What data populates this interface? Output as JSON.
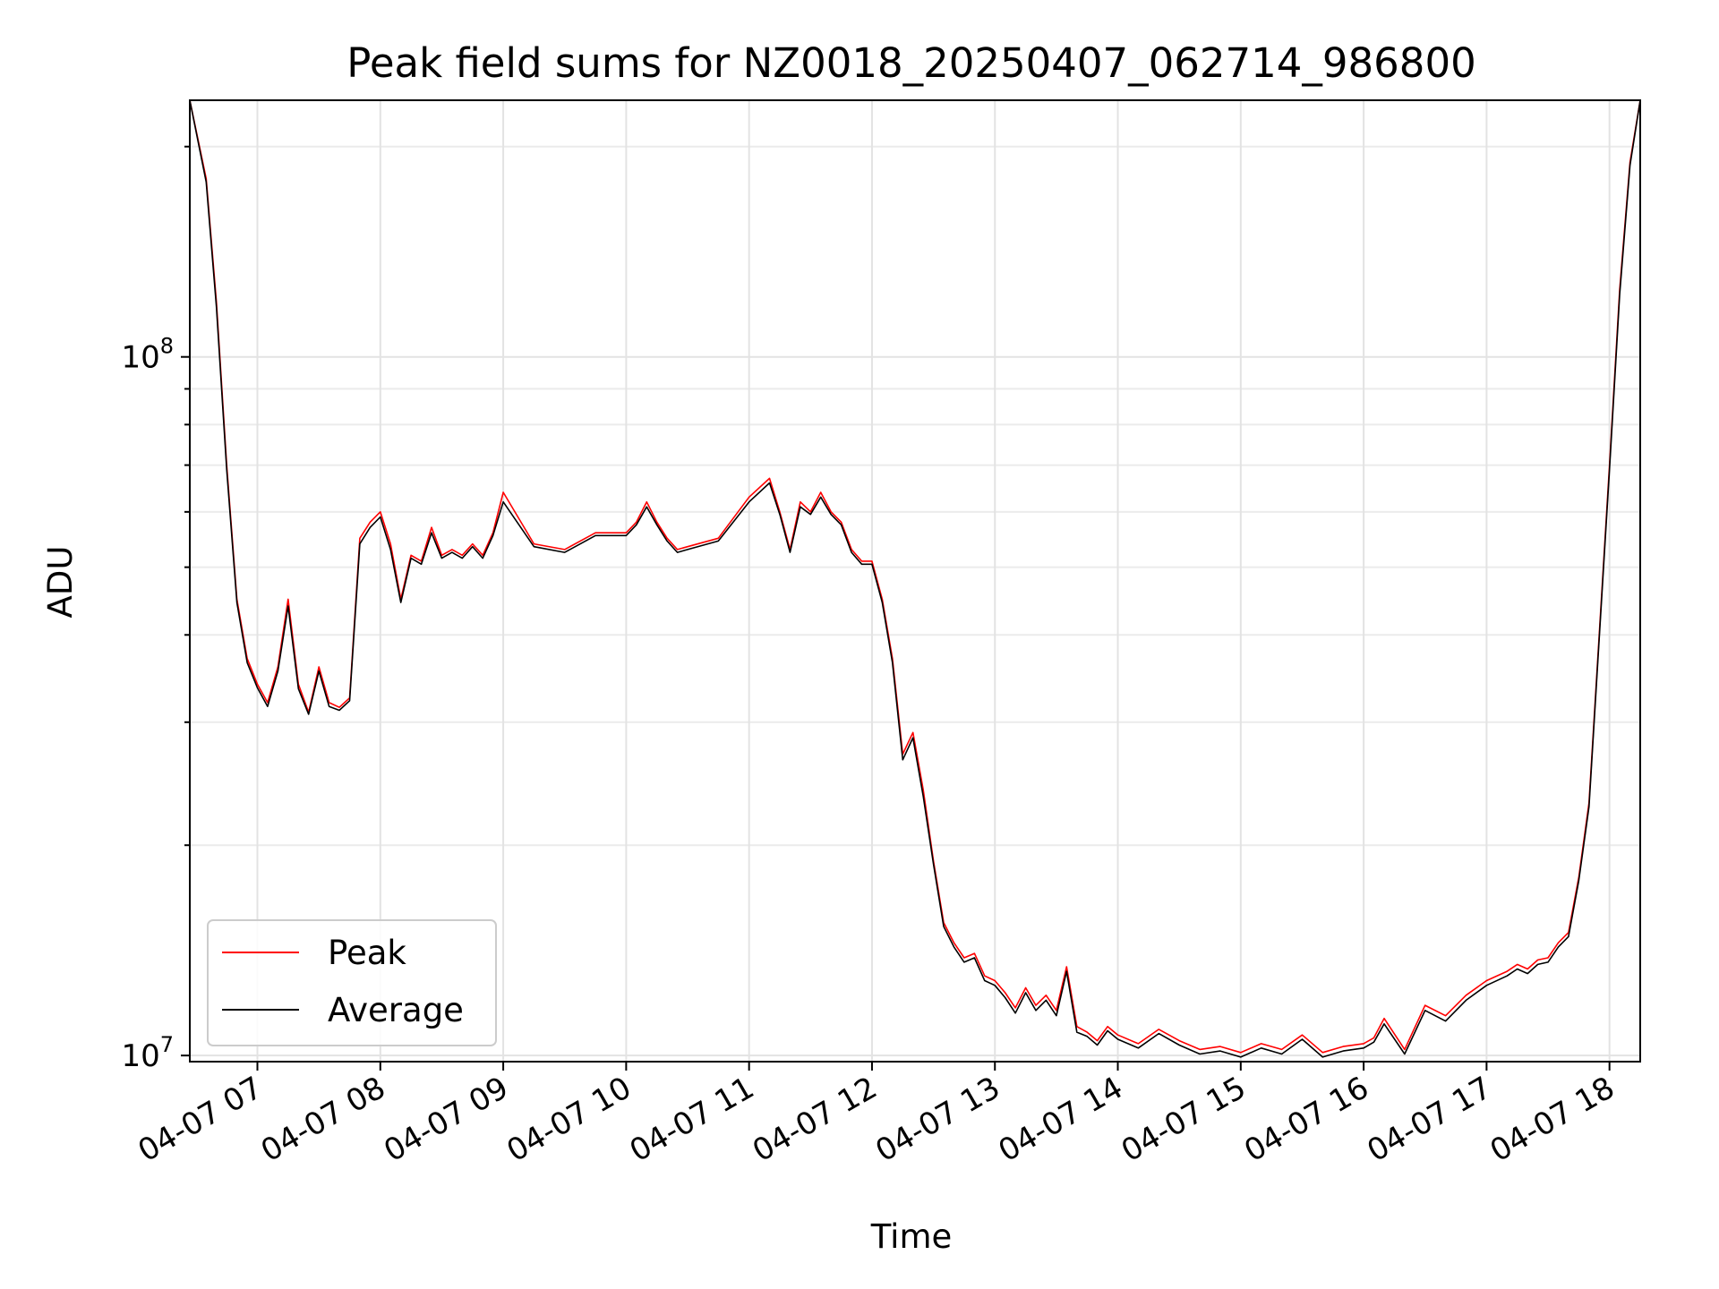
{
  "chart_data": {
    "type": "line",
    "title": "Peak field sums for NZ0018_20250407_062714_986800",
    "xlabel": "Time",
    "ylabel": "ADU",
    "y_scale": "log",
    "ylim": [
      9800000,
      233000000
    ],
    "xlim": [
      "04-07 06:27",
      "04-07 18:15"
    ],
    "x_ticks": [
      "04-07 07",
      "04-07 08",
      "04-07 09",
      "04-07 10",
      "04-07 11",
      "04-07 12",
      "04-07 13",
      "04-07 14",
      "04-07 15",
      "04-07 16",
      "04-07 17",
      "04-07 18"
    ],
    "y_tick_labels": [
      {
        "value": 10000000,
        "base": "10",
        "exp": "7"
      },
      {
        "value": 100000000,
        "base": "10",
        "exp": "8"
      }
    ],
    "grid": true,
    "legend_position": "lower left",
    "x": [
      "06:27",
      "06:35",
      "06:40",
      "06:45",
      "06:50",
      "06:55",
      "07:00",
      "07:05",
      "07:10",
      "07:15",
      "07:20",
      "07:25",
      "07:30",
      "07:35",
      "07:40",
      "07:45",
      "07:50",
      "07:55",
      "08:00",
      "08:05",
      "08:10",
      "08:15",
      "08:20",
      "08:25",
      "08:30",
      "08:35",
      "08:40",
      "08:45",
      "08:50",
      "08:55",
      "09:00",
      "09:15",
      "09:30",
      "09:45",
      "10:00",
      "10:05",
      "10:10",
      "10:15",
      "10:20",
      "10:25",
      "10:30",
      "10:45",
      "11:00",
      "11:10",
      "11:15",
      "11:20",
      "11:25",
      "11:30",
      "11:35",
      "11:40",
      "11:45",
      "11:50",
      "11:55",
      "12:00",
      "12:05",
      "12:10",
      "12:15",
      "12:20",
      "12:25",
      "12:30",
      "12:35",
      "12:40",
      "12:45",
      "12:50",
      "12:55",
      "13:00",
      "13:05",
      "13:10",
      "13:15",
      "13:20",
      "13:25",
      "13:30",
      "13:35",
      "13:40",
      "13:45",
      "13:50",
      "13:55",
      "14:00",
      "14:10",
      "14:20",
      "14:30",
      "14:40",
      "14:50",
      "15:00",
      "15:10",
      "15:20",
      "15:30",
      "15:40",
      "15:50",
      "16:00",
      "16:05",
      "16:10",
      "16:20",
      "16:30",
      "16:40",
      "16:50",
      "17:00",
      "17:10",
      "17:15",
      "17:20",
      "17:25",
      "17:30",
      "17:35",
      "17:40",
      "17:45",
      "17:50",
      "17:55",
      "18:00",
      "18:05",
      "18:10",
      "18:15"
    ],
    "series": [
      {
        "name": "Peak",
        "color": "#ff0000",
        "values": [
          233000000,
          180000000,
          120000000,
          70000000,
          45000000,
          37000000,
          34000000,
          32000000,
          36000000,
          45000000,
          34000000,
          31000000,
          36000000,
          32000000,
          31500000,
          32500000,
          55000000,
          58000000,
          60000000,
          54000000,
          45000000,
          52000000,
          51000000,
          57000000,
          52000000,
          53000000,
          52000000,
          54000000,
          52000000,
          56000000,
          64000000,
          54000000,
          53000000,
          56000000,
          56000000,
          58000000,
          62000000,
          58000000,
          55000000,
          53000000,
          53500000,
          55000000,
          63000000,
          67000000,
          60000000,
          53000000,
          62000000,
          60000000,
          64000000,
          60000000,
          58000000,
          53000000,
          51000000,
          51000000,
          45000000,
          37000000,
          27000000,
          29000000,
          24000000,
          19000000,
          15500000,
          14500000,
          13800000,
          14000000,
          13000000,
          12800000,
          12300000,
          11700000,
          12500000,
          11800000,
          12200000,
          11600000,
          13400000,
          11000000,
          10800000,
          10500000,
          11000000,
          10700000,
          10400000,
          10900000,
          10500000,
          10200000,
          10300000,
          10100000,
          10400000,
          10200000,
          10700000,
          10100000,
          10300000,
          10400000,
          10600000,
          11300000,
          10200000,
          11800000,
          11400000,
          12200000,
          12800000,
          13200000,
          13500000,
          13300000,
          13700000,
          13800000,
          14500000,
          15000000,
          18000000,
          23000000,
          40000000,
          70000000,
          125000000,
          190000000,
          233000000
        ]
      },
      {
        "name": "Average",
        "color": "#000000",
        "values": [
          233000000,
          178000000,
          118000000,
          69000000,
          44500000,
          36500000,
          33600000,
          31600000,
          35500000,
          44000000,
          33500000,
          30800000,
          35500000,
          31600000,
          31200000,
          32200000,
          54000000,
          57000000,
          59000000,
          53000000,
          44500000,
          51500000,
          50500000,
          56000000,
          51500000,
          52500000,
          51500000,
          53500000,
          51500000,
          55500000,
          62000000,
          53500000,
          52500000,
          55500000,
          55500000,
          57500000,
          61000000,
          57500000,
          54500000,
          52500000,
          53000000,
          54500000,
          62000000,
          66000000,
          59500000,
          52500000,
          61000000,
          59500000,
          63000000,
          59500000,
          57500000,
          52500000,
          50500000,
          50500000,
          44500000,
          36500000,
          26500000,
          28500000,
          23500000,
          18800000,
          15300000,
          14300000,
          13600000,
          13800000,
          12800000,
          12600000,
          12100000,
          11500000,
          12300000,
          11600000,
          12000000,
          11400000,
          13200000,
          10800000,
          10650000,
          10350000,
          10850000,
          10550000,
          10250000,
          10750000,
          10350000,
          10050000,
          10150000,
          9950000,
          10250000,
          10050000,
          10550000,
          9950000,
          10150000,
          10250000,
          10450000,
          11100000,
          10050000,
          11600000,
          11200000,
          12000000,
          12600000,
          13000000,
          13300000,
          13100000,
          13500000,
          13600000,
          14300000,
          14800000,
          17800000,
          22700000,
          39500000,
          69000000,
          123000000,
          188000000,
          233000000
        ]
      }
    ]
  }
}
